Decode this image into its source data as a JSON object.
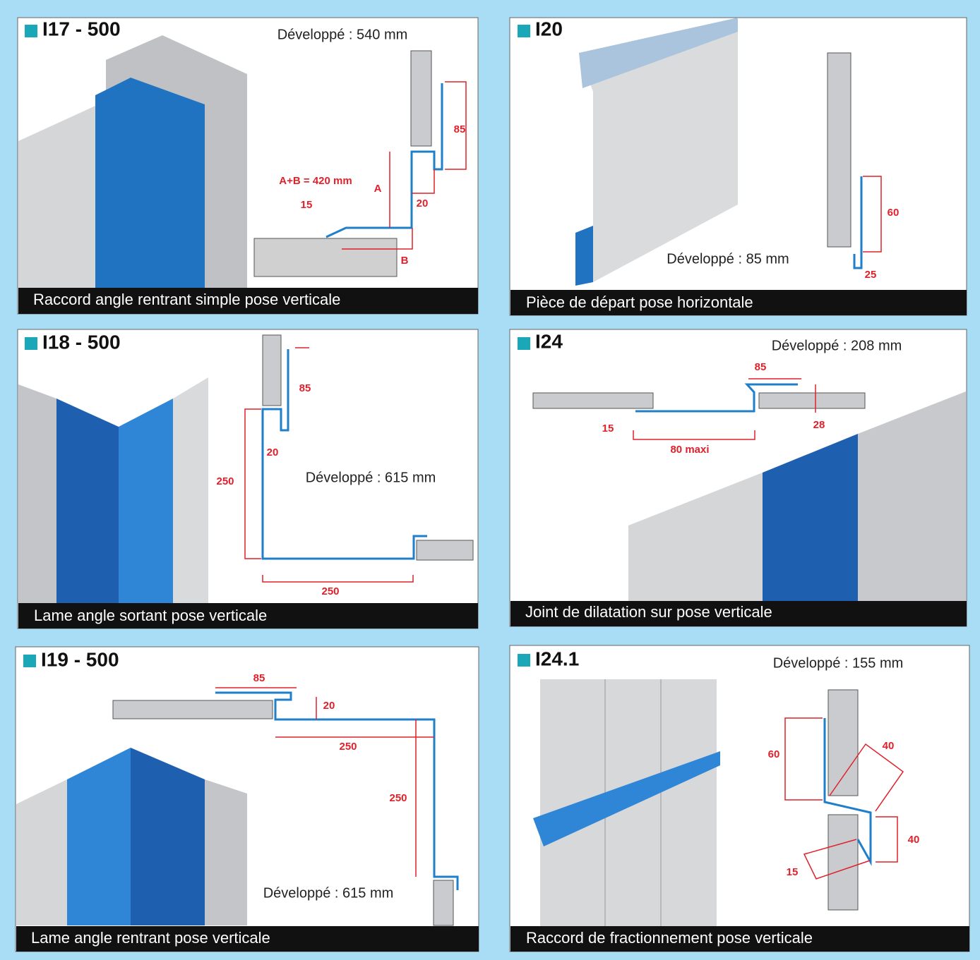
{
  "panels": [
    {
      "code": "I17 - 500",
      "developed": "Développé : 540 mm",
      "caption": "Raccord angle rentrant simple pose verticale",
      "dims": [
        "85",
        "A+B = 420 mm",
        "A",
        "15",
        "20",
        "B"
      ]
    },
    {
      "code": "I20",
      "developed": "Développé : 85 mm",
      "caption": "Pièce de départ pose horizontale",
      "dims": [
        "60",
        "25"
      ]
    },
    {
      "code": "I18 - 500",
      "developed": "Développé : 615 mm",
      "caption": "Lame angle sortant pose verticale",
      "dims": [
        "85",
        "20",
        "250",
        "250"
      ]
    },
    {
      "code": "I24",
      "developed": "Développé : 208 mm",
      "caption": "Joint de dilatation sur pose verticale",
      "dims": [
        "85",
        "15",
        "28",
        "80 maxi"
      ]
    },
    {
      "code": "I19 - 500",
      "developed": "Développé : 615 mm",
      "caption": "Lame angle rentrant pose verticale",
      "dims": [
        "85",
        "20",
        "250",
        "250"
      ]
    },
    {
      "code": "I24.1",
      "developed": "Développé : 155 mm",
      "caption": "Raccord de fractionnement pose verticale",
      "dims": [
        "40",
        "60",
        "40",
        "15"
      ]
    }
  ]
}
